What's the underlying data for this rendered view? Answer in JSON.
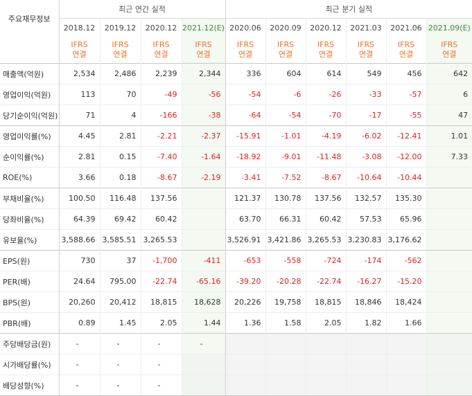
{
  "header": {
    "corner_label": "주요재무정보",
    "annual_section": "최근 연간 실적",
    "quarter_section": "최근 분기 실적",
    "annual_periods": [
      "2018.12",
      "2019.12",
      "2020.12",
      "2021.12(E)"
    ],
    "quarter_periods": [
      "2020.06",
      "2020.09",
      "2020.12",
      "2021.03",
      "2021.06",
      "2021.09(E)"
    ],
    "ifrs_top": "IFRS",
    "ifrs_bottom": "연결"
  },
  "rows": [
    {
      "label": "매출액(억원)",
      "values": [
        "2,534",
        "2,486",
        "2,239",
        "2,344",
        "336",
        "604",
        "614",
        "549",
        "456",
        "642"
      ]
    },
    {
      "label": "영업이익(억원)",
      "values": [
        "113",
        "70",
        "-49",
        "-56",
        "-54",
        "-6",
        "-26",
        "-33",
        "-57",
        "6"
      ]
    },
    {
      "label": "당기순이익(억원)",
      "values": [
        "71",
        "4",
        "-166",
        "-38",
        "-64",
        "-54",
        "-70",
        "-17",
        "-55",
        "47"
      ]
    },
    {
      "label": "영업이익률(%)",
      "values": [
        "4.45",
        "2.81",
        "-2.21",
        "-2.37",
        "-15.91",
        "-1.01",
        "-4.19",
        "-6.02",
        "-12.41",
        "1.01"
      ]
    },
    {
      "label": "순이익률(%)",
      "values": [
        "2.81",
        "0.15",
        "-7.40",
        "-1.64",
        "-18.92",
        "-9.01",
        "-11.48",
        "-3.08",
        "-12.00",
        "7.33"
      ]
    },
    {
      "label": "ROE(%)",
      "values": [
        "3.66",
        "0.18",
        "-8.67",
        "-2.19",
        "-3.41",
        "-7.52",
        "-8.67",
        "-10.64",
        "-10.44",
        ""
      ]
    },
    {
      "label": "부채비율(%)",
      "values": [
        "100.50",
        "116.48",
        "137.56",
        "",
        "121.37",
        "130.78",
        "137.56",
        "132.57",
        "135.30",
        ""
      ]
    },
    {
      "label": "당좌비율(%)",
      "values": [
        "64.39",
        "69.42",
        "60.42",
        "",
        "63.70",
        "66.31",
        "60.42",
        "57.53",
        "65.96",
        ""
      ]
    },
    {
      "label": "유보율(%)",
      "values": [
        "3,588.66",
        "3,585.51",
        "3,265.53",
        "",
        "3,526.91",
        "3,421.86",
        "3,265.53",
        "3,230.83",
        "3,176.62",
        ""
      ]
    },
    {
      "label": "EPS(원)",
      "values": [
        "730",
        "37",
        "-1,700",
        "-411",
        "-653",
        "-558",
        "-724",
        "-174",
        "-562",
        ""
      ]
    },
    {
      "label": "PER(배)",
      "values": [
        "24.64",
        "795.00",
        "-22.74",
        "-65.16",
        "-39.20",
        "-20.28",
        "-22.74",
        "-16.27",
        "-15.20",
        ""
      ]
    },
    {
      "label": "BPS(원)",
      "values": [
        "20,260",
        "20,412",
        "18,815",
        "18,628",
        "20,226",
        "19,758",
        "18,815",
        "18,846",
        "18,424",
        ""
      ]
    },
    {
      "label": "PBR(배)",
      "values": [
        "0.89",
        "1.45",
        "2.05",
        "1.44",
        "1.36",
        "1.58",
        "2.05",
        "1.82",
        "1.66",
        ""
      ]
    },
    {
      "label": "주당배당금(원)",
      "values": [
        "-",
        "-",
        "-",
        "-",
        "",
        "",
        "",
        "",
        "",
        ""
      ]
    },
    {
      "label": "시가배당률(%)",
      "values": [
        "-",
        "-",
        "-",
        "",
        "",
        "",
        "",
        "",
        "",
        ""
      ]
    },
    {
      "label": "배당성향(%)",
      "values": [
        "-",
        "-",
        "-",
        "",
        "",
        "",
        "",
        "",
        "",
        ""
      ]
    }
  ]
}
